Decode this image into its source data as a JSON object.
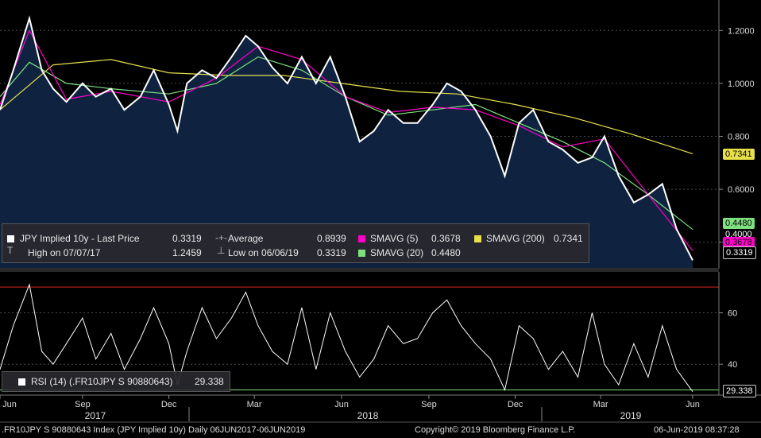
{
  "chart_data": [
    {
      "type": "line",
      "title": "JPY Implied 10y",
      "ylim": [
        0.3,
        1.3
      ],
      "y_ticks": [
        "1.2000",
        "1.0000",
        "0.800",
        "0.6000",
        "0.4000"
      ],
      "series": [
        {
          "name": "JPY Implied 10y - Last Price",
          "color": "#ffffff",
          "x": [
            "2017-06-06",
            "2017-06-20",
            "2017-07-07",
            "2017-07-20",
            "2017-08-01",
            "2017-08-15",
            "2017-09-01",
            "2017-09-15",
            "2017-10-01",
            "2017-10-15",
            "2017-11-01",
            "2017-11-15",
            "2017-12-01",
            "2017-12-10",
            "2017-12-20",
            "2018-01-05",
            "2018-01-20",
            "2018-02-05",
            "2018-02-20",
            "2018-03-05",
            "2018-03-20",
            "2018-04-05",
            "2018-04-20",
            "2018-05-05",
            "2018-05-20",
            "2018-06-05",
            "2018-06-20",
            "2018-07-05",
            "2018-07-20",
            "2018-08-05",
            "2018-08-20",
            "2018-09-05",
            "2018-09-20",
            "2018-10-05",
            "2018-10-20",
            "2018-11-05",
            "2018-11-20",
            "2018-12-05",
            "2018-12-20",
            "2019-01-05",
            "2019-01-20",
            "2019-02-05",
            "2019-02-20",
            "2019-03-05",
            "2019-03-20",
            "2019-04-05",
            "2019-04-20",
            "2019-05-05",
            "2019-05-20",
            "2019-06-06"
          ],
          "values": [
            0.9,
            1.05,
            1.2459,
            1.05,
            0.98,
            0.93,
            1.0,
            0.95,
            0.98,
            0.9,
            0.95,
            1.05,
            0.92,
            0.82,
            1.0,
            1.05,
            1.02,
            1.1,
            1.18,
            1.14,
            1.06,
            1.0,
            1.1,
            1.0,
            1.1,
            0.95,
            0.78,
            0.82,
            0.9,
            0.85,
            0.85,
            0.92,
            1.0,
            0.97,
            0.9,
            0.8,
            0.65,
            0.85,
            0.9,
            0.78,
            0.75,
            0.7,
            0.72,
            0.8,
            0.65,
            0.55,
            0.58,
            0.62,
            0.45,
            0.3319
          ]
        },
        {
          "name": "SMAVG (5)",
          "color": "#ff00c8",
          "x": [
            "2017-06-06",
            "2017-07-07",
            "2017-08-15",
            "2017-10-01",
            "2017-12-01",
            "2018-01-20",
            "2018-03-05",
            "2018-04-20",
            "2018-06-05",
            "2018-07-20",
            "2018-09-05",
            "2018-10-20",
            "2018-12-05",
            "2019-01-20",
            "2019-03-05",
            "2019-04-20",
            "2019-06-06"
          ],
          "values": [
            0.92,
            1.2,
            0.94,
            0.97,
            0.93,
            1.02,
            1.14,
            1.09,
            0.95,
            0.89,
            0.91,
            0.9,
            0.84,
            0.76,
            0.79,
            0.58,
            0.3678
          ]
        },
        {
          "name": "SMAVG (20)",
          "color": "#7ee07e",
          "x": [
            "2017-06-06",
            "2017-07-07",
            "2017-08-15",
            "2017-10-01",
            "2017-12-01",
            "2018-01-20",
            "2018-03-05",
            "2018-04-20",
            "2018-06-05",
            "2018-07-20",
            "2018-09-05",
            "2018-10-20",
            "2018-12-05",
            "2019-01-20",
            "2019-03-05",
            "2019-04-20",
            "2019-06-06"
          ],
          "values": [
            0.95,
            1.08,
            1.0,
            0.98,
            0.96,
            1.0,
            1.1,
            1.05,
            0.95,
            0.88,
            0.9,
            0.92,
            0.85,
            0.78,
            0.7,
            0.58,
            0.448
          ]
        },
        {
          "name": "SMAVG (200)",
          "color": "#e8e04a",
          "x": [
            "2017-06-06",
            "2017-08-01",
            "2017-10-01",
            "2017-12-01",
            "2018-02-01",
            "2018-04-01",
            "2018-06-01",
            "2018-08-01",
            "2018-10-01",
            "2018-12-01",
            "2019-02-01",
            "2019-04-01",
            "2019-06-06"
          ],
          "values": [
            0.9,
            1.07,
            1.09,
            1.04,
            1.03,
            1.03,
            1.0,
            0.97,
            0.96,
            0.92,
            0.87,
            0.81,
            0.7341
          ]
        }
      ]
    },
    {
      "type": "line",
      "title": "RSI (14) (.FR10JPY S 90880643)",
      "ylim": [
        28,
        75
      ],
      "y_ticks": [
        "60",
        "40"
      ],
      "series": [
        {
          "name": "RSI (14) (.FR10JPY S 90880643)",
          "color": "#ffffff",
          "x": [
            "2017-06-06",
            "2017-06-20",
            "2017-07-07",
            "2017-07-20",
            "2017-08-01",
            "2017-08-15",
            "2017-09-01",
            "2017-09-15",
            "2017-10-01",
            "2017-10-15",
            "2017-11-01",
            "2017-11-15",
            "2017-12-01",
            "2017-12-10",
            "2017-12-20",
            "2018-01-05",
            "2018-01-20",
            "2018-02-05",
            "2018-02-20",
            "2018-03-05",
            "2018-03-20",
            "2018-04-05",
            "2018-04-20",
            "2018-05-05",
            "2018-05-20",
            "2018-06-05",
            "2018-06-20",
            "2018-07-05",
            "2018-07-20",
            "2018-08-05",
            "2018-08-20",
            "2018-09-05",
            "2018-09-20",
            "2018-10-05",
            "2018-10-20",
            "2018-11-05",
            "2018-11-20",
            "2018-12-05",
            "2018-12-20",
            "2019-01-05",
            "2019-01-20",
            "2019-02-05",
            "2019-02-20",
            "2019-03-05",
            "2019-03-20",
            "2019-04-05",
            "2019-04-20",
            "2019-05-05",
            "2019-05-20",
            "2019-06-06"
          ],
          "values": [
            38,
            55,
            71,
            45,
            40,
            48,
            58,
            42,
            52,
            38,
            50,
            62,
            48,
            32,
            45,
            62,
            50,
            58,
            68,
            55,
            45,
            40,
            62,
            38,
            60,
            45,
            35,
            42,
            55,
            48,
            50,
            60,
            65,
            55,
            48,
            42,
            30,
            55,
            50,
            38,
            45,
            35,
            60,
            40,
            32,
            48,
            35,
            55,
            38,
            29.338
          ]
        }
      ],
      "reference_lines": [
        {
          "value": 70,
          "color": "#d82020"
        },
        {
          "value": 30,
          "color": "#7ee07e"
        }
      ]
    }
  ],
  "x_axis": {
    "months": [
      "Jun",
      "Sep",
      "Dec",
      "Mar",
      "Jun",
      "Sep",
      "Dec",
      "Mar",
      "Jun"
    ],
    "years": [
      "2017",
      "2018",
      "2019"
    ]
  },
  "legend_price": {
    "name_label": "JPY Implied 10y - Last Price",
    "last_price": "0.3319",
    "average_label": "Average",
    "average_value": "0.8939",
    "sma5_label": "SMAVG (5)",
    "sma5_value": "0.3678",
    "sma200_label": "SMAVG (200)",
    "sma200_value": "0.7341",
    "high_label": "High on 07/07/17",
    "high_value": "1.2459",
    "low_label": "Low on 06/06/19",
    "low_value": "0.3319",
    "sma20_label": "SMAVG (20)",
    "sma20_value": "0.4480"
  },
  "legend_rsi": {
    "label": "RSI (14) (.FR10JPY S 90880643)",
    "value": "29.338"
  },
  "tags": {
    "sma200": "0.7341",
    "sma20": "0.4480",
    "axis_0_4": "0.4000",
    "sma5": "0.3678",
    "last": "0.3319",
    "rsi": "29.338"
  },
  "footer": {
    "left": ".FR10JPY S 90880643 Index (JPY Implied 10y)  Daily 06JUN2017-06JUN2019",
    "copyright": "Copyright© 2019 Bloomberg Finance L.P.",
    "timestamp": "06-Jun-2019 08:37:28"
  },
  "colors": {
    "background": "#000000",
    "area_fill": "#0f2340",
    "price": "#ffffff",
    "sma5": "#ff00c8",
    "sma20": "#7ee07e",
    "sma200": "#e8e04a",
    "rsi_upper": "#d82020",
    "rsi_lower": "#7ee07e"
  }
}
